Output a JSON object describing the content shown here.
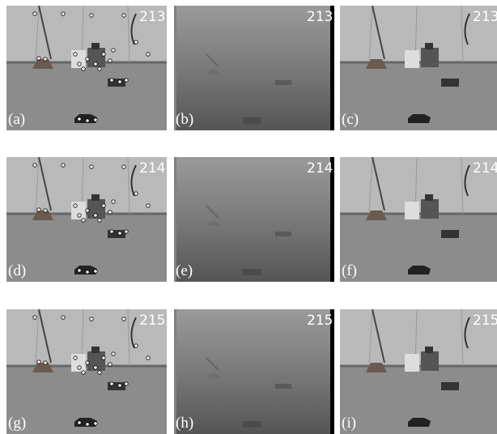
{
  "panels": [
    {
      "label": "(a)",
      "frame": "213"
    },
    {
      "label": "(b)",
      "frame": "213"
    },
    {
      "label": "(c)",
      "frame": "213"
    },
    {
      "label": "(d)",
      "frame": "214"
    },
    {
      "label": "(e)",
      "frame": "214"
    },
    {
      "label": "(f)",
      "frame": "214"
    },
    {
      "label": "(g)",
      "frame": "215"
    },
    {
      "label": "(h)",
      "frame": "215"
    },
    {
      "label": "(i)",
      "frame": "215"
    }
  ]
}
